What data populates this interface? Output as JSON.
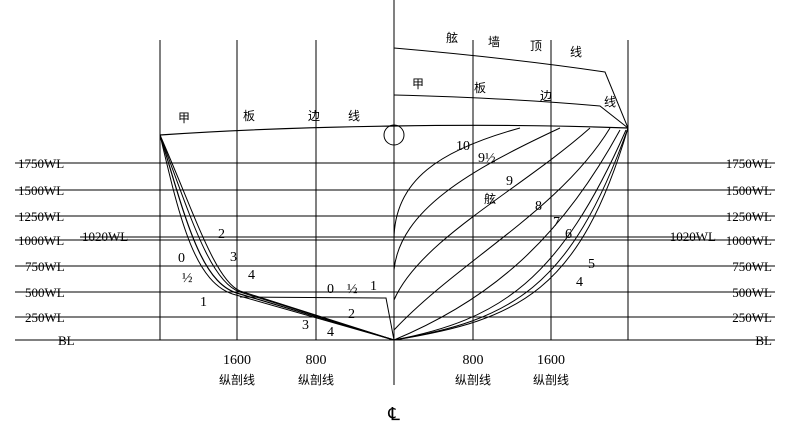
{
  "waterlines_left": [
    "1750WL",
    "1500WL",
    "1250WL",
    "1000WL",
    "1020WL",
    "750WL",
    "500WL",
    "250WL",
    "BL"
  ],
  "waterlines_right": [
    "1750WL",
    "1500WL",
    "1250WL",
    "1020WL",
    "1000WL",
    "750WL",
    "500WL",
    "250WL",
    "BL"
  ],
  "stations_left": [
    "0",
    "½",
    "1",
    "2",
    "3",
    "4",
    "0",
    "½",
    "1",
    "2",
    "3",
    "4"
  ],
  "stations_right": [
    "10",
    "9½",
    "9",
    "8",
    "7",
    "6",
    "5",
    "4"
  ],
  "buttocks": [
    {
      "value": "1600",
      "label": "纵剖线"
    },
    {
      "value": "800",
      "label": "纵剖线"
    },
    {
      "value": "800",
      "label": "纵剖线"
    },
    {
      "value": "1600",
      "label": "纵剖线"
    }
  ],
  "centerline": "℄",
  "deck_line_left": [
    "甲",
    "板",
    "边",
    "线"
  ],
  "deck_line_right": [
    "甲",
    "板",
    "边",
    "线"
  ],
  "bulwark_line": [
    "舷",
    "墙",
    "顶",
    "线"
  ],
  "annotation": "舷"
}
